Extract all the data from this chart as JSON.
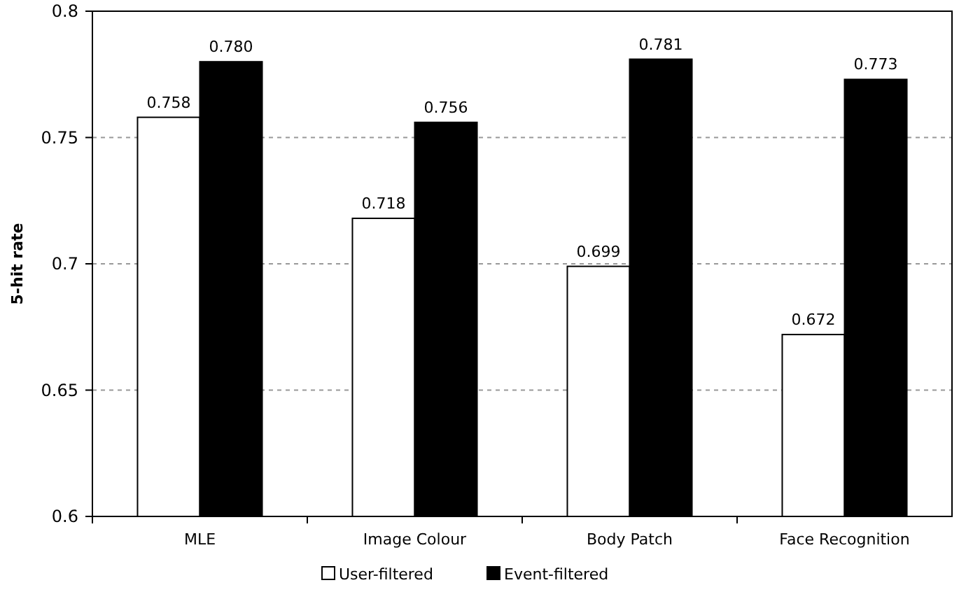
{
  "chart_data": {
    "type": "bar",
    "ylabel": "5-hit rate",
    "categories": [
      "MLE",
      "Image Colour",
      "Body Patch",
      "Face Recognition"
    ],
    "series": [
      {
        "name": "User-filtered",
        "color": "#ffffff",
        "values": [
          0.758,
          0.718,
          0.699,
          0.672
        ],
        "value_labels": [
          "0.758",
          "0.718",
          "0.699",
          "0.672"
        ]
      },
      {
        "name": "Event-filtered",
        "color": "#000000",
        "values": [
          0.78,
          0.756,
          0.781,
          0.773
        ],
        "value_labels": [
          "0.780",
          "0.756",
          "0.781",
          "0.773"
        ]
      }
    ],
    "ylim": [
      0.6,
      0.8
    ],
    "yticks": [
      0.6,
      0.65,
      0.7,
      0.75,
      0.8
    ],
    "grid": "y",
    "legend": "bottom"
  }
}
